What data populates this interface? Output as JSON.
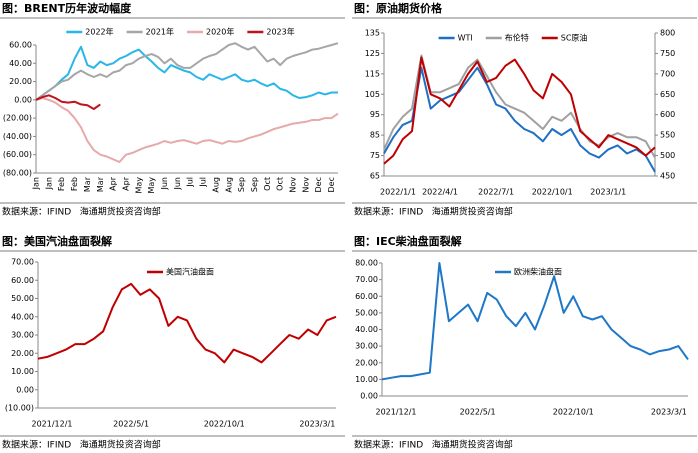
{
  "chart_data": [
    {
      "type": "line",
      "title": "图：BRENT历年波动幅度",
      "source": "数据来源：IFIND   海通期货投资咨询部",
      "legend": "top",
      "categories": [
        "Jan",
        null,
        "Jan",
        null,
        "Feb",
        null,
        "Feb",
        null,
        "Mar",
        null,
        "Mar",
        null,
        "Apr",
        null,
        "Apr",
        null,
        "May",
        null,
        "May",
        null,
        "Jun",
        null,
        "Jun",
        null,
        "Jul",
        null,
        "Jul",
        null,
        "Aug",
        null,
        "Aug",
        null,
        "Sep",
        null,
        "Sep",
        null,
        "Oct",
        null,
        "Oct",
        null,
        "Nov",
        null,
        "Nov",
        null,
        "Dec",
        null,
        "Dec",
        null
      ],
      "ylim": [
        -80,
        60
      ],
      "yticks": [
        {
          "value": 60,
          "label": "60.00"
        },
        {
          "value": 40,
          "label": "40.00"
        },
        {
          "value": 20,
          "label": "20.00"
        },
        {
          "value": 0,
          "label": "0.00"
        },
        {
          "value": -20,
          "label": "(20.00)"
        },
        {
          "value": -40,
          "label": "(40.00)"
        },
        {
          "value": -60,
          "label": "(60.00)"
        },
        {
          "value": -80,
          "label": "(80.00)"
        }
      ],
      "negative_tick_color": "#ff0000",
      "series": [
        {
          "name": "2022年",
          "color": "#29b6e8",
          "values": [
            0,
            5,
            10,
            15,
            22,
            28,
            45,
            58,
            38,
            35,
            42,
            38,
            40,
            45,
            48,
            52,
            55,
            48,
            42,
            35,
            30,
            38,
            35,
            32,
            30,
            25,
            22,
            28,
            25,
            22,
            25,
            28,
            22,
            20,
            22,
            18,
            15,
            18,
            12,
            10,
            5,
            2,
            3,
            5,
            8,
            6,
            8,
            8
          ]
        },
        {
          "name": "2021年",
          "color": "#a6a6a6",
          "values": [
            0,
            5,
            10,
            15,
            20,
            22,
            28,
            32,
            28,
            25,
            28,
            25,
            30,
            32,
            38,
            40,
            45,
            48,
            50,
            47,
            40,
            45,
            38,
            35,
            35,
            40,
            45,
            48,
            50,
            55,
            60,
            62,
            58,
            55,
            58,
            50,
            42,
            45,
            38,
            45,
            48,
            50,
            52,
            55,
            56,
            58,
            60,
            62
          ]
        },
        {
          "name": "2020年",
          "color": "#e6aaaa",
          "values": [
            0,
            2,
            0,
            -3,
            -8,
            -12,
            -20,
            -30,
            -45,
            -55,
            -60,
            -62,
            -65,
            -68,
            -60,
            -58,
            -55,
            -52,
            -50,
            -48,
            -45,
            -47,
            -45,
            -44,
            -46,
            -48,
            -45,
            -44,
            -46,
            -48,
            -45,
            -46,
            -45,
            -42,
            -40,
            -38,
            -35,
            -32,
            -30,
            -28,
            -26,
            -25,
            -24,
            -22,
            -22,
            -20,
            -20,
            -15
          ]
        },
        {
          "name": "2023年",
          "color": "#c0141c",
          "values": [
            0,
            3,
            5,
            2,
            -2,
            -3,
            -2,
            -5,
            -6,
            -10,
            -5,
            null,
            null,
            null,
            null,
            null,
            null,
            null,
            null,
            null,
            null,
            null,
            null,
            null,
            null,
            null,
            null,
            null,
            null,
            null,
            null,
            null,
            null,
            null,
            null,
            null,
            null,
            null,
            null,
            null,
            null,
            null,
            null,
            null,
            null,
            null,
            null,
            null
          ]
        }
      ]
    },
    {
      "type": "line",
      "title": "图：原油期货价格",
      "source": "数据来源：IFIND   海通期货投资咨询部",
      "legend": "top",
      "categories": [
        "2022/1/1",
        null,
        null,
        null,
        null,
        null,
        "2022/4/1",
        null,
        null,
        null,
        null,
        null,
        "2022/7/1",
        null,
        null,
        null,
        null,
        null,
        "2022/10/1",
        null,
        null,
        null,
        null,
        null,
        "2023/1/1",
        null,
        null,
        null,
        null,
        null
      ],
      "ylim": [
        65,
        135
      ],
      "yticks": [
        135,
        125,
        115,
        105,
        95,
        85,
        75,
        65
      ],
      "y2lim": [
        450,
        800
      ],
      "y2ticks": [
        800,
        750,
        700,
        650,
        600,
        550,
        500,
        450
      ],
      "series": [
        {
          "name": "WTI",
          "color": "#1f6fc5",
          "values": [
            76,
            84,
            90,
            92,
            118,
            98,
            102,
            104,
            106,
            112,
            118,
            110,
            100,
            98,
            92,
            88,
            86,
            82,
            88,
            85,
            88,
            80,
            76,
            74,
            78,
            80,
            76,
            78,
            75,
            67
          ]
        },
        {
          "name": "布伦特",
          "color": "#a0a0a0",
          "values": [
            78,
            88,
            94,
            98,
            124,
            106,
            106,
            108,
            110,
            118,
            122,
            114,
            106,
            100,
            98,
            96,
            92,
            88,
            94,
            92,
            96,
            88,
            82,
            80,
            84,
            86,
            84,
            84,
            82,
            74
          ]
        },
        {
          "name": "SC原油",
          "color": "#c00000",
          "axis": "y2",
          "values": [
            480,
            500,
            540,
            560,
            740,
            650,
            640,
            620,
            660,
            700,
            730,
            680,
            690,
            720,
            735,
            700,
            660,
            640,
            700,
            680,
            650,
            560,
            540,
            520,
            550,
            540,
            530,
            520,
            500,
            520
          ]
        }
      ]
    },
    {
      "type": "line",
      "title": "图：美国汽油盘面裂解",
      "source": "数据来源：IFIND   海通期货投资咨询部",
      "legend": "top",
      "categories": [
        "2021/12/1",
        null,
        null,
        null,
        null,
        null,
        null,
        null,
        null,
        null,
        "2022/5/1",
        null,
        null,
        null,
        null,
        null,
        null,
        null,
        null,
        null,
        "2022/10/1",
        null,
        null,
        null,
        null,
        null,
        null,
        null,
        null,
        null,
        "2023/3/1",
        null,
        null
      ],
      "ylim": [
        -10,
        70
      ],
      "yticks": [
        {
          "value": 70,
          "label": "70.00"
        },
        {
          "value": 60,
          "label": "60.00"
        },
        {
          "value": 50,
          "label": "50.00"
        },
        {
          "value": 40,
          "label": "40.00"
        },
        {
          "value": 30,
          "label": "30.00"
        },
        {
          "value": 20,
          "label": "20.00"
        },
        {
          "value": 10,
          "label": "10.00"
        },
        {
          "value": 0,
          "label": "0.00"
        },
        {
          "value": -10,
          "label": "(10.00)"
        }
      ],
      "negative_tick_color": "#ff0000",
      "series": [
        {
          "name": "美国汽油盘面",
          "color": "#c00000",
          "values": [
            17,
            18,
            20,
            22,
            25,
            25,
            28,
            32,
            45,
            55,
            58,
            52,
            55,
            50,
            35,
            40,
            38,
            28,
            22,
            20,
            15,
            22,
            20,
            18,
            15,
            20,
            25,
            30,
            28,
            33,
            30,
            38,
            40
          ]
        }
      ]
    },
    {
      "type": "line",
      "title": "图：IEC柴油盘面裂解",
      "source": "数据来源：IFIND   海通期货投资咨询部",
      "legend": "top",
      "categories": [
        "2021/12/1",
        null,
        null,
        null,
        null,
        null,
        null,
        null,
        null,
        null,
        "2022/5/1",
        null,
        null,
        null,
        null,
        null,
        null,
        null,
        null,
        null,
        "2022/10/1",
        null,
        null,
        null,
        null,
        null,
        null,
        null,
        null,
        null,
        "2023/3/1",
        null,
        null
      ],
      "ylim": [
        0,
        80
      ],
      "yticks": [
        {
          "value": 80,
          "label": "80.00"
        },
        {
          "value": 70,
          "label": "70.00"
        },
        {
          "value": 60,
          "label": "60.00"
        },
        {
          "value": 50,
          "label": "50.00"
        },
        {
          "value": 40,
          "label": "40.00"
        },
        {
          "value": 30,
          "label": "30.00"
        },
        {
          "value": 20,
          "label": "20.00"
        },
        {
          "value": 10,
          "label": "10.00"
        },
        {
          "value": 0,
          "label": "0.00"
        }
      ],
      "series": [
        {
          "name": "欧洲柴油盘面",
          "color": "#1f77c8",
          "values": [
            10,
            11,
            12,
            12,
            13,
            14,
            80,
            45,
            50,
            55,
            45,
            62,
            58,
            48,
            42,
            50,
            40,
            55,
            72,
            50,
            60,
            48,
            46,
            48,
            40,
            35,
            30,
            28,
            25,
            27,
            28,
            30,
            22
          ]
        }
      ]
    }
  ]
}
